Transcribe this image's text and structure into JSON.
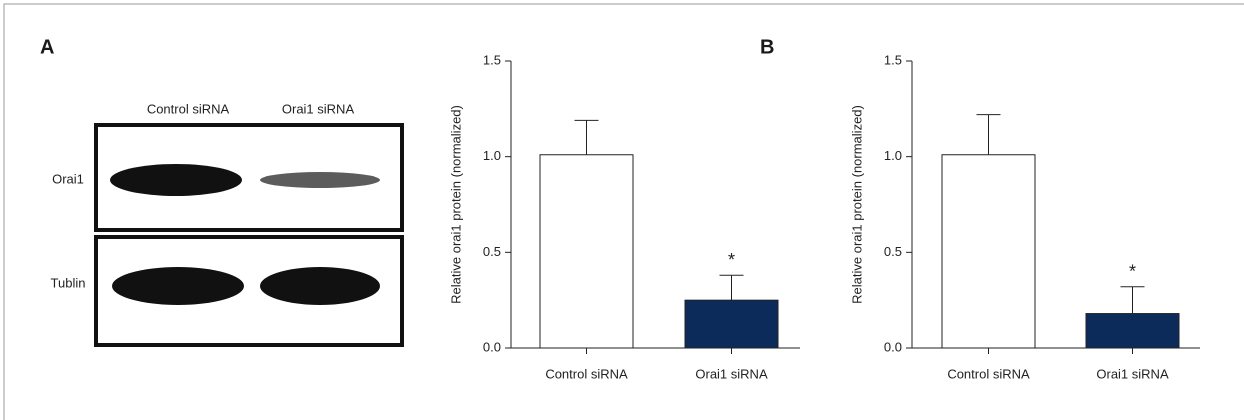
{
  "panel_labels": [
    "A",
    "B"
  ],
  "blot": {
    "lanes": [
      "Control siRNA",
      "Orai1 siRNA"
    ],
    "rows": [
      "Orai1",
      "Tublin"
    ]
  },
  "chart_data": [
    {
      "type": "bar",
      "ylabel": "Relative orai1 protein (normalized)",
      "categories": [
        "Control siRNA",
        "Orai1 siRNA"
      ],
      "values": [
        1.01,
        0.25
      ],
      "errors": [
        0.18,
        0.13
      ],
      "colors": [
        "#ffffff",
        "#0d2b5a"
      ],
      "annotation": {
        "category": "Orai1 siRNA",
        "text": "*"
      },
      "ylim": [
        0,
        1.5
      ],
      "yticks": [
        {
          "value": 0,
          "label": "0.0"
        },
        {
          "value": 0.5,
          "label": "0.5"
        },
        {
          "value": 1,
          "label": "1.0"
        },
        {
          "value": 1.5,
          "label": "1.5"
        }
      ]
    },
    {
      "type": "bar",
      "ylabel": "Relative orai1 protein (normalized)",
      "categories": [
        "Control siRNA",
        "Orai1 siRNA"
      ],
      "values": [
        1.01,
        0.18
      ],
      "errors": [
        0.21,
        0.14
      ],
      "colors": [
        "#ffffff",
        "#0d2b5a"
      ],
      "annotation": {
        "category": "Orai1 siRNA",
        "text": "*"
      },
      "ylim": [
        0,
        1.5
      ],
      "yticks": [
        {
          "value": 0,
          "label": "0.0"
        },
        {
          "value": 0.5,
          "label": "0.5"
        },
        {
          "value": 1,
          "label": "1.0"
        },
        {
          "value": 1.5,
          "label": "1.5"
        }
      ]
    }
  ]
}
